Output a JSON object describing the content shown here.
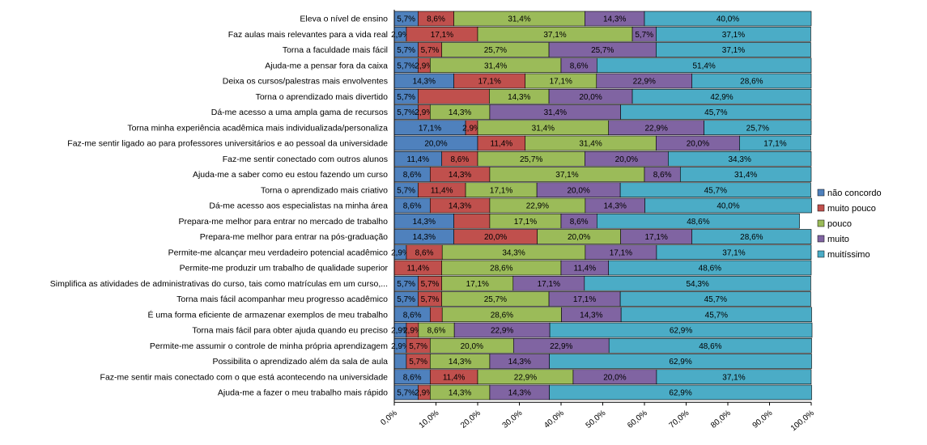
{
  "chart_data": {
    "type": "bar",
    "orientation": "horizontal",
    "stacked": "percent",
    "categories": [
      "Eleva o nível de ensino",
      "Faz aulas mais relevantes para a vida real",
      "Torna a faculdade mais fácil",
      "Ajuda-me a pensar fora da caixa",
      "Deixa os cursos/palestras mais envolventes",
      "Torna o aprendizado mais divertido",
      "Dá-me acesso a uma ampla gama de recursos",
      "Torna minha experiência acadêmica mais individualizada/personaliza",
      "Faz-me sentir ligado ao para professores universitários e ao pessoal da universidade",
      "Faz-me sentir conectado com outros alunos",
      "Ajuda-me a saber como eu estou fazendo um curso",
      "Torna o aprendizado mais criativo",
      "Dá-me acesso aos especialistas na minha área",
      "Prepara-me melhor para entrar no mercado de trabalho",
      "Prepara-me melhor para entrar na pós-graduação",
      "Permite-me alcançar meu verdadeiro potencial acadêmico",
      "Permite-me produzir um trabalho de qualidade superior",
      "Simplifica as atividades de administrativas do curso, tais como matrículas em um curso,...",
      "Torna mais fácil acompanhar meu progresso acadêmico",
      "É uma forma eficiente de armazenar exemplos de meu trabalho",
      "Torna mais fácil para obter ajuda quando eu preciso",
      "Permite-me assumir o controle de minha própria aprendizagem",
      "Possibilita o aprendizado além da sala de aula",
      "Faz-me sentir mais conectado com o que está acontecendo na universidade",
      "Ajuda-me a fazer o meu trabalho mais rápido"
    ],
    "series": [
      {
        "name": "não concordo",
        "color": "#4f81bd",
        "values": [
          5.7,
          2.9,
          5.7,
          5.7,
          14.3,
          5.7,
          5.7,
          17.1,
          20.0,
          11.4,
          8.6,
          5.7,
          8.6,
          14.3,
          14.3,
          2.9,
          0,
          5.7,
          5.7,
          8.6,
          2.9,
          2.9,
          2.9,
          8.6,
          5.7
        ],
        "labels": [
          "5,7%",
          "2,9%",
          "5,7%",
          "5,7%",
          "14,3%",
          "5,7%",
          "5,7%",
          "17,1%",
          "20,0%",
          "11,4%",
          "8,6%",
          "5,7%",
          "8,6%",
          "14,3%",
          "14,3%",
          "2,9%",
          "",
          "5,7%",
          "5,7%",
          "8,6%",
          "2,9%",
          "2,9%",
          "",
          "8,6%",
          "5,7%"
        ]
      },
      {
        "name": "muito pouco",
        "color": "#c0504d",
        "values": [
          8.6,
          17.1,
          5.7,
          2.9,
          17.1,
          17.1,
          2.9,
          2.9,
          11.4,
          8.6,
          14.3,
          11.4,
          14.3,
          8.6,
          20.0,
          8.6,
          11.4,
          5.7,
          5.7,
          2.9,
          2.9,
          5.7,
          5.7,
          11.4,
          2.9
        ],
        "labels": [
          "8,6%",
          "17,1%",
          "5,7%",
          "2,9%",
          "17,1%",
          "",
          "2,9%",
          "2,9%",
          "11,4%",
          "8,6%",
          "14,3%",
          "11,4%",
          "14,3%",
          "",
          "20,0%",
          "8,6%",
          "11,4%",
          "5,7%",
          "5,7%",
          "",
          "2,9%",
          "5,7%",
          "5,7%",
          "11,4%",
          "2,9%"
        ]
      },
      {
        "name": "pouco",
        "color": "#9bbb59",
        "values": [
          31.4,
          37.1,
          25.7,
          31.4,
          17.1,
          14.3,
          14.3,
          31.4,
          31.4,
          25.7,
          37.1,
          17.1,
          22.9,
          17.1,
          20.0,
          34.3,
          28.6,
          17.1,
          25.7,
          28.6,
          8.6,
          20.0,
          14.3,
          22.9,
          14.3
        ],
        "labels": [
          "31,4%",
          "37,1%",
          "25,7%",
          "31,4%",
          "17,1%",
          "14,3%",
          "14,3%",
          "31,4%",
          "31,4%",
          "25,7%",
          "37,1%",
          "17,1%",
          "22,9%",
          "17,1%",
          "20,0%",
          "34,3%",
          "28,6%",
          "17,1%",
          "25,7%",
          "28,6%",
          "8,6%",
          "20,0%",
          "14,3%",
          "22,9%",
          "14,3%"
        ]
      },
      {
        "name": "muito",
        "color": "#8064a2",
        "values": [
          14.3,
          5.7,
          25.7,
          8.6,
          22.9,
          20.0,
          31.4,
          22.9,
          20.0,
          20.0,
          8.6,
          20.0,
          14.3,
          8.6,
          17.1,
          17.1,
          11.4,
          17.1,
          17.1,
          14.3,
          22.9,
          22.9,
          14.3,
          20.0,
          14.3
        ],
        "labels": [
          "14,3%",
          "5,7%",
          "25,7%",
          "8,6%",
          "22,9%",
          "20,0%",
          "31,4%",
          "22,9%",
          "20,0%",
          "20,0%",
          "8,6%",
          "20,0%",
          "14,3%",
          "8,6%",
          "17,1%",
          "17,1%",
          "11,4%",
          "17,1%",
          "17,1%",
          "14,3%",
          "22,9%",
          "22,9%",
          "14,3%",
          "20,0%",
          "14,3%"
        ]
      },
      {
        "name": "muitíssimo",
        "color": "#4bacc6",
        "values": [
          40.0,
          37.1,
          37.1,
          51.4,
          28.6,
          42.9,
          45.7,
          25.7,
          17.1,
          34.3,
          31.4,
          45.7,
          40.0,
          48.6,
          28.6,
          37.1,
          48.6,
          54.3,
          45.7,
          45.7,
          62.9,
          48.6,
          62.9,
          37.1,
          62.9
        ],
        "labels": [
          "40,0%",
          "37,1%",
          "37,1%",
          "51,4%",
          "28,6%",
          "42,9%",
          "45,7%",
          "25,7%",
          "17,1%",
          "34,3%",
          "31,4%",
          "45,7%",
          "40,0%",
          "48,6%",
          "28,6%",
          "37,1%",
          "48,6%",
          "54,3%",
          "45,7%",
          "45,7%",
          "62,9%",
          "48,6%",
          "62,9%",
          "37,1%",
          "62,9%"
        ]
      }
    ],
    "xlim": [
      0,
      100
    ],
    "x_ticks": [
      "0,0%",
      "10,0%",
      "20,0%",
      "30,0%",
      "40,0%",
      "50,0%",
      "60,0%",
      "70,0%",
      "80,0%",
      "90,0%",
      "100,0%"
    ],
    "legend_position": "right",
    "grid": false,
    "title": "",
    "xlabel": "",
    "ylabel": ""
  }
}
